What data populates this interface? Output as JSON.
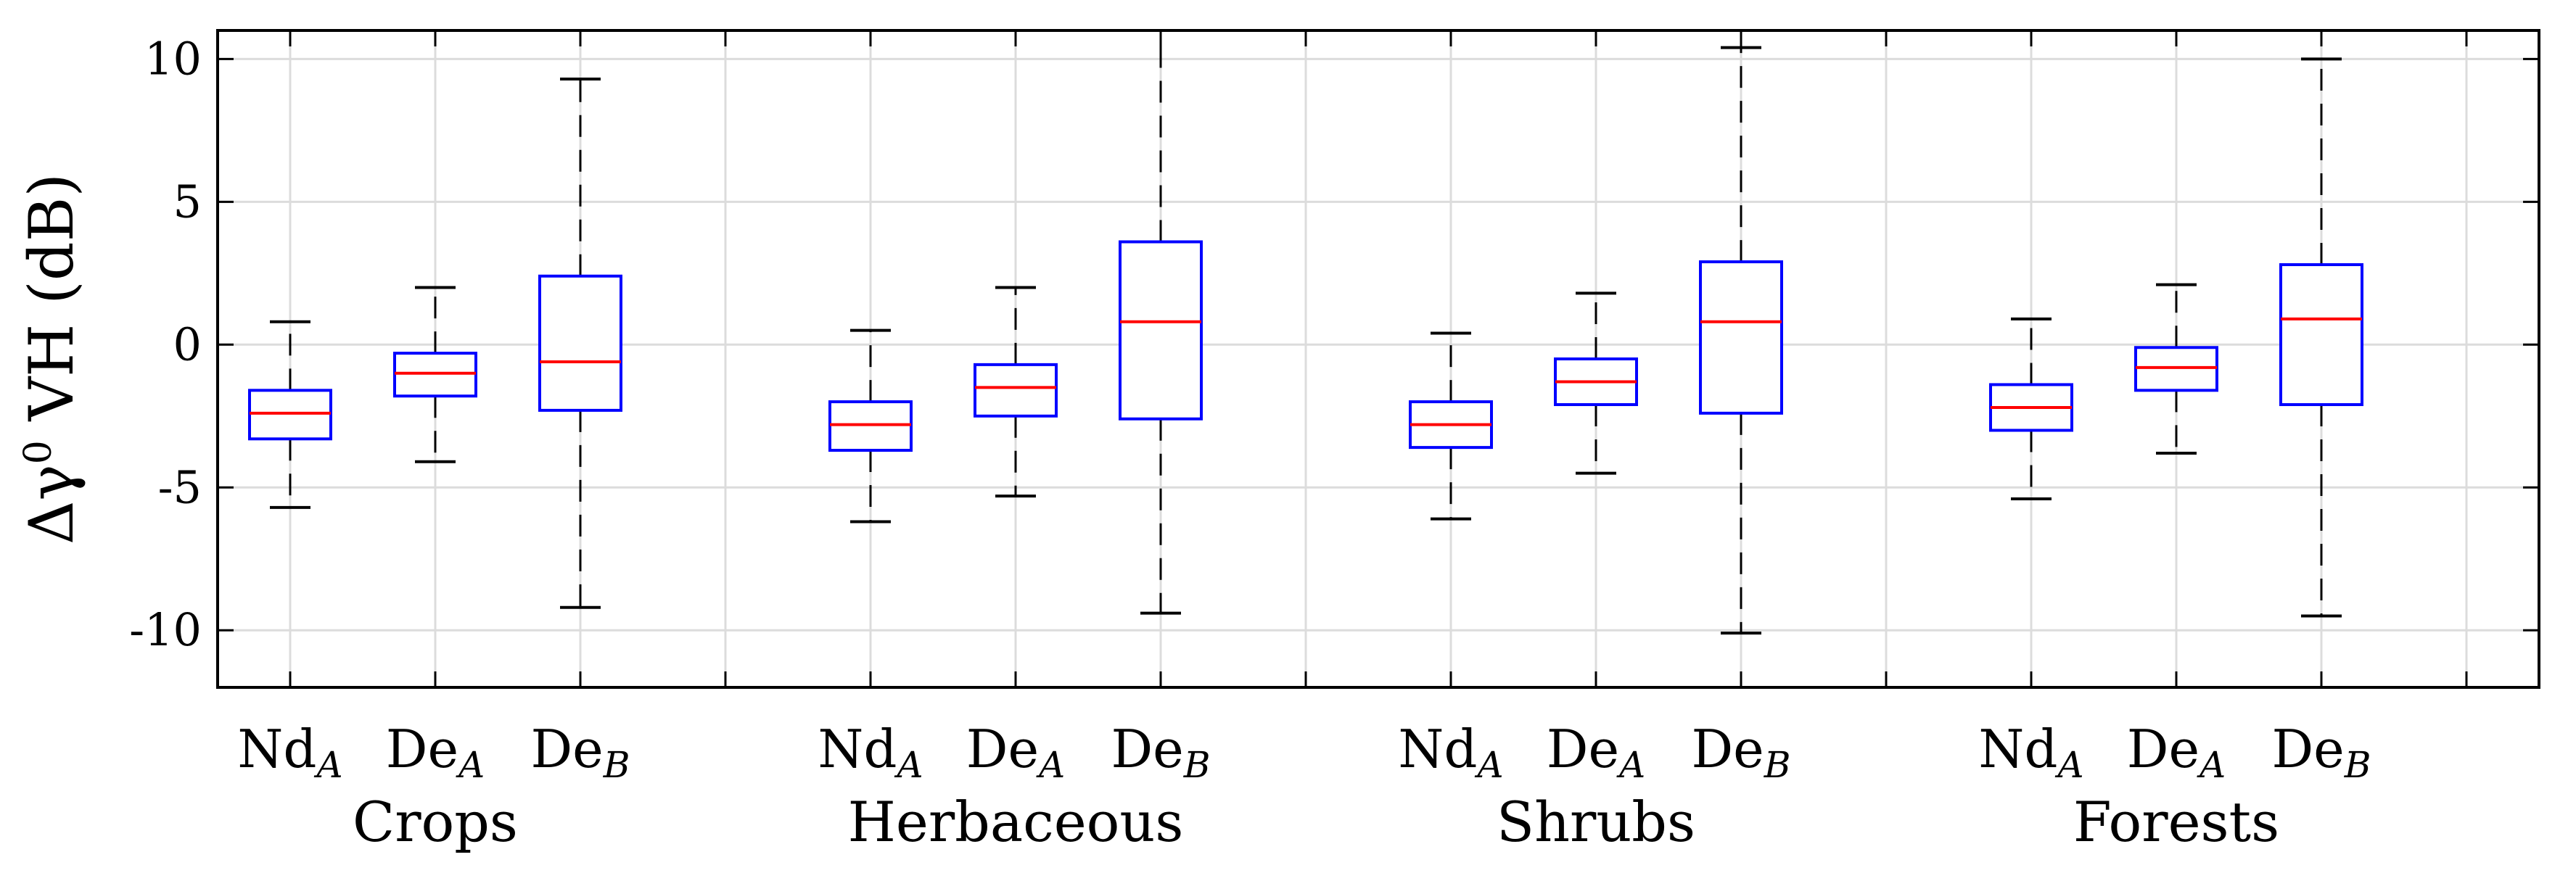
{
  "chart_data": {
    "type": "boxplot",
    "ylabel": {
      "main": "Δγ",
      "sup": "0",
      "rest": " VH (dB)"
    },
    "ylim": [
      -12,
      11
    ],
    "yticks": [
      10,
      5,
      0,
      -5,
      -10
    ],
    "ytick_labels": [
      "10",
      "5",
      "0",
      "-5",
      "-10"
    ],
    "grid": true,
    "colors": {
      "box": "#0000ff",
      "median": "#ff0000",
      "whisker": "#000000",
      "grid": "#dcdcdc",
      "axis": "#000000"
    },
    "groups": [
      {
        "name": "Crops",
        "boxes": [
          {
            "label": "Nd",
            "sub": "A",
            "min": -5.7,
            "q1": -3.3,
            "median": -2.4,
            "q3": -1.6,
            "max": 0.8
          },
          {
            "label": "De",
            "sub": "A",
            "min": -4.1,
            "q1": -1.8,
            "median": -1.0,
            "q3": -0.3,
            "max": 2.0
          },
          {
            "label": "De",
            "sub": "B",
            "min": -9.2,
            "q1": -2.3,
            "median": -0.6,
            "q3": 2.4,
            "max": 9.3
          }
        ]
      },
      {
        "name": "Herbaceous",
        "boxes": [
          {
            "label": "Nd",
            "sub": "A",
            "min": -6.2,
            "q1": -3.7,
            "median": -2.8,
            "q3": -2.0,
            "max": 0.5
          },
          {
            "label": "De",
            "sub": "A",
            "min": -5.3,
            "q1": -2.5,
            "median": -1.5,
            "q3": -0.7,
            "max": 2.0
          },
          {
            "label": "De",
            "sub": "B",
            "min": -9.4,
            "q1": -2.6,
            "median": 0.8,
            "q3": 3.6,
            "max": 11.0
          }
        ]
      },
      {
        "name": "Shrubs",
        "boxes": [
          {
            "label": "Nd",
            "sub": "A",
            "min": -6.1,
            "q1": -3.6,
            "median": -2.8,
            "q3": -2.0,
            "max": 0.4
          },
          {
            "label": "De",
            "sub": "A",
            "min": -4.5,
            "q1": -2.1,
            "median": -1.3,
            "q3": -0.5,
            "max": 1.8
          },
          {
            "label": "De",
            "sub": "B",
            "min": -10.1,
            "q1": -2.4,
            "median": 0.8,
            "q3": 2.9,
            "max": 10.4
          }
        ]
      },
      {
        "name": "Forests",
        "boxes": [
          {
            "label": "Nd",
            "sub": "A",
            "min": -5.4,
            "q1": -3.0,
            "median": -2.2,
            "q3": -1.4,
            "max": 0.9
          },
          {
            "label": "De",
            "sub": "A",
            "min": -3.8,
            "q1": -1.6,
            "median": -0.8,
            "q3": -0.1,
            "max": 2.1
          },
          {
            "label": "De",
            "sub": "B",
            "min": -9.5,
            "q1": -2.1,
            "median": 0.9,
            "q3": 2.8,
            "max": 10.0
          }
        ]
      }
    ]
  }
}
